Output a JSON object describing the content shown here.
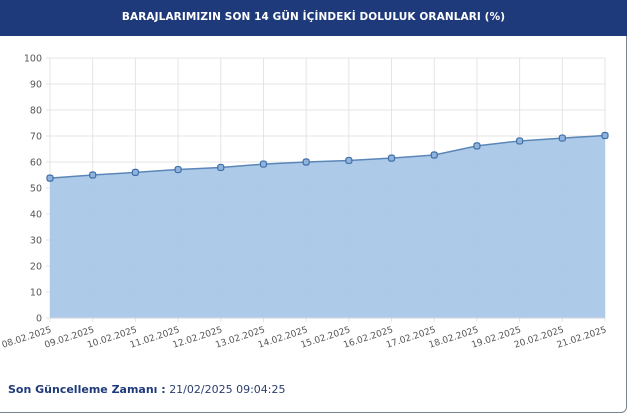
{
  "header": {
    "title": "BARAJLARIMIZIN SON 14 GÜN İÇİNDEKİ DOLULUK ORANLARI (%)"
  },
  "chart_data": {
    "type": "area",
    "title": "",
    "xlabel": "",
    "ylabel": "",
    "ylim": [
      0,
      100
    ],
    "yticks": [
      "0",
      "10",
      "20",
      "30",
      "40",
      "50",
      "60",
      "70",
      "80",
      "90",
      "100"
    ],
    "grid": true,
    "categories": [
      "08.02.2025",
      "09.02.2025",
      "10.02.2025",
      "11.02.2025",
      "12.02.2025",
      "13.02.2025",
      "14.02.2025",
      "15.02.2025",
      "16.02.2025",
      "17.02.2025",
      "18.02.2025",
      "19.02.2025",
      "20.02.2025",
      "21.02.2025"
    ],
    "values": [
      53.8,
      55.0,
      56.0,
      57.1,
      57.9,
      59.2,
      60.0,
      60.6,
      61.5,
      62.7,
      66.2,
      68.1,
      69.2,
      70.2
    ],
    "colors": {
      "fill": "#a9c8e8",
      "line": "#5b86b8",
      "marker": "#3f6fa8",
      "header": "#1e3a7b"
    }
  },
  "footer": {
    "label": "Son Güncelleme Zamanı :",
    "value": "21/02/2025 09:04:25"
  }
}
